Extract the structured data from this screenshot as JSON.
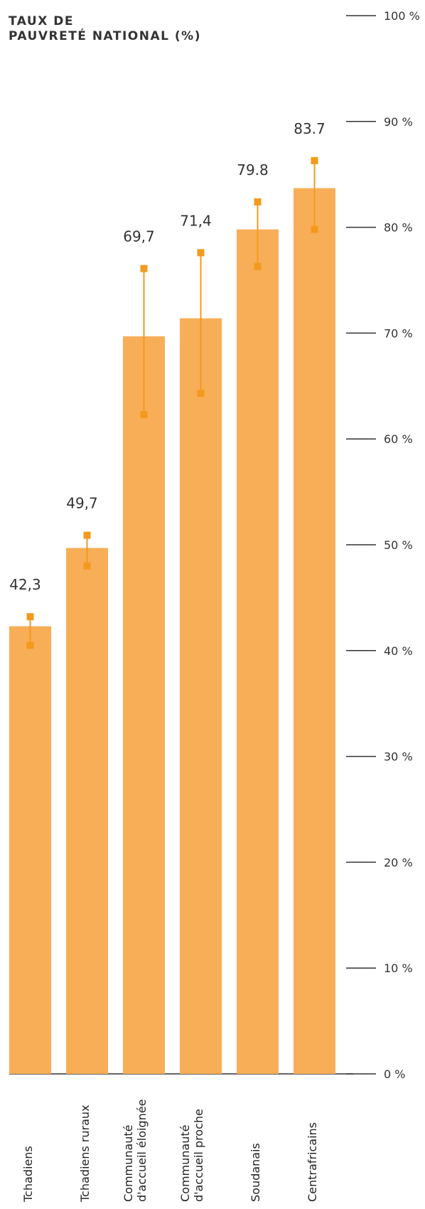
{
  "chart_data": {
    "type": "bar",
    "title_lines": [
      "TAUX DE",
      "PAUVRETÉ NATIONAL (%)"
    ],
    "categories": [
      [
        "Tchadiens"
      ],
      [
        "Tchadiens ruraux"
      ],
      [
        "Communauté",
        "d'accueil éloignée"
      ],
      [
        "Communauté",
        "d'accueil proche"
      ],
      [
        "Soudanais"
      ],
      [
        "Centrafricains"
      ]
    ],
    "values": [
      42.3,
      49.7,
      69.7,
      71.4,
      79.8,
      83.7
    ],
    "value_labels": [
      "42,3",
      "49,7",
      "69,7",
      "71,4",
      "79.8",
      "83.7"
    ],
    "error_bars": [
      {
        "low": 40.5,
        "high": 43.2
      },
      {
        "low": 48.0,
        "high": 50.9
      },
      {
        "low": 62.3,
        "high": 76.1
      },
      {
        "low": 64.3,
        "high": 77.6
      },
      {
        "low": 76.3,
        "high": 82.4
      },
      {
        "low": 79.8,
        "high": 86.3
      }
    ],
    "y_ticks": [
      0,
      10,
      20,
      30,
      40,
      50,
      60,
      70,
      80,
      90,
      100
    ],
    "y_tick_labels": [
      "0 %",
      "10 %",
      "20 %",
      "30 %",
      "40 %",
      "50 %",
      "60 %",
      "70 %",
      "80 %",
      "90 %",
      "100 %"
    ],
    "ylim": [
      0,
      100
    ],
    "colors": {
      "bar": "#F8AE57",
      "error": "#F39A1E",
      "axis": "#333333"
    }
  }
}
